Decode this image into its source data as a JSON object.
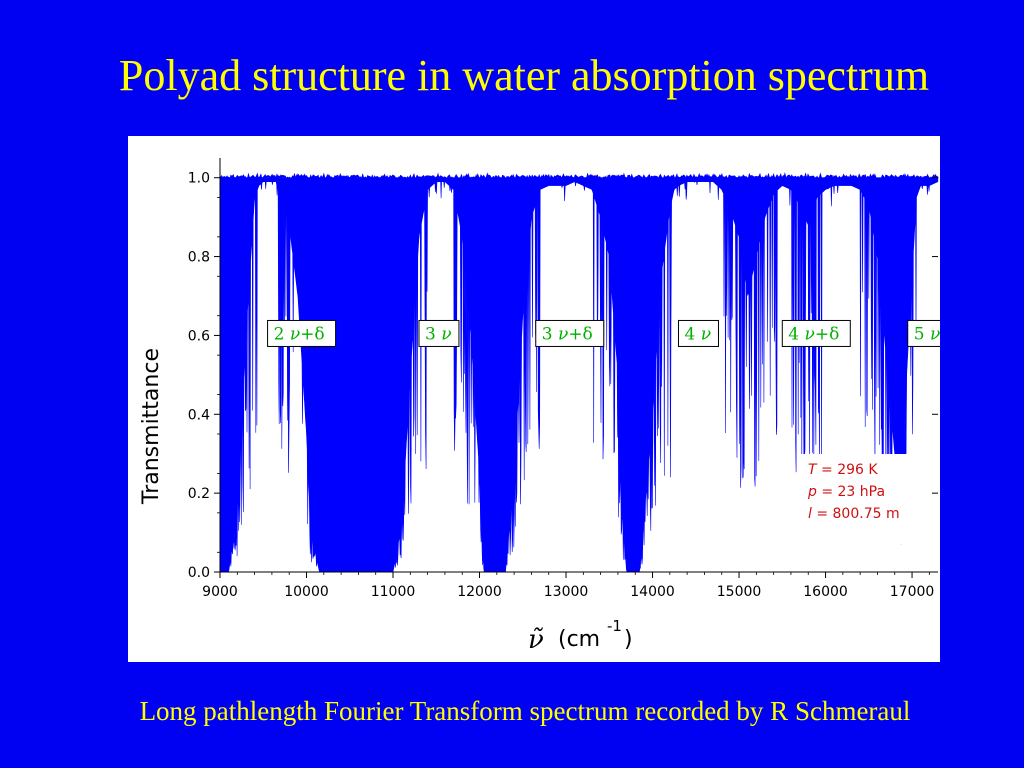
{
  "slide": {
    "title": "Polyad structure in water absorption spectrum",
    "caption": "Long pathlength Fourier Transform spectrum recorded by R Schmeraul"
  },
  "colors": {
    "background": "#0000f2",
    "title_text": "#ffff00",
    "absorption_fill": "#0000ff",
    "band_label_text": "#00b000",
    "conditions_text": "#d01010"
  },
  "chart_data": {
    "type": "area",
    "ylabel": "Transmittance",
    "xlabel_symbol": "ν̃",
    "xlabel_unit": "(cm",
    "xlabel_exponent": "-1",
    "xlabel_close": ")",
    "xlim": [
      9000,
      17300
    ],
    "ylim": [
      0,
      1.05
    ],
    "x_ticks": [
      9000,
      10000,
      11000,
      12000,
      13000,
      14000,
      15000,
      16000,
      17000
    ],
    "x_tick_labels": [
      "9000",
      "10000",
      "11000",
      "12000",
      "13000",
      "14000",
      "15000",
      "16000",
      "17000"
    ],
    "y_ticks": [
      0.0,
      0.2,
      0.4,
      0.6,
      0.8,
      1.0
    ],
    "y_tick_labels": [
      "0.0",
      "0.2",
      "0.4",
      "0.6",
      "0.8",
      "1.0"
    ],
    "transmittance_envelope": {
      "x": [
        9000,
        9100,
        9200,
        9300,
        9400,
        9450,
        9500,
        9550,
        9650,
        9700,
        9800,
        9900,
        10000,
        10050,
        10150,
        10900,
        11000,
        11100,
        11200,
        11300,
        11400,
        11500,
        11600,
        11700,
        11800,
        11900,
        12000,
        12050,
        12300,
        12400,
        12500,
        12600,
        12700,
        12800,
        12900,
        13000,
        13100,
        13300,
        13400,
        13500,
        13600,
        13650,
        13700,
        13750,
        13850,
        14000,
        14100,
        14200,
        14250,
        14300,
        14400,
        14500,
        14600,
        14700,
        14800,
        14900,
        15000,
        15100,
        15200,
        15300,
        15400,
        15500,
        15600,
        15700,
        15800,
        15850,
        15900,
        16000,
        16100,
        16200,
        16300,
        16400,
        16500,
        16600,
        16700,
        16800,
        16850,
        16900,
        17000,
        17050,
        17100,
        17200,
        17300
      ],
      "y": [
        0.0,
        0.0,
        0.15,
        0.6,
        0.95,
        0.98,
        0.99,
        0.99,
        0.99,
        0.95,
        0.88,
        0.7,
        0.35,
        0.1,
        0.0,
        0.0,
        0.0,
        0.12,
        0.5,
        0.85,
        0.97,
        0.99,
        0.99,
        0.97,
        0.85,
        0.6,
        0.25,
        0.0,
        0.0,
        0.25,
        0.65,
        0.9,
        0.97,
        0.98,
        0.98,
        0.98,
        0.99,
        0.97,
        0.9,
        0.8,
        0.5,
        0.15,
        0.0,
        0.0,
        0.0,
        0.4,
        0.75,
        0.92,
        0.97,
        0.98,
        0.99,
        0.99,
        0.99,
        0.99,
        0.97,
        0.92,
        0.85,
        0.7,
        0.8,
        0.9,
        0.96,
        0.98,
        0.97,
        0.93,
        0.88,
        0.9,
        0.95,
        0.97,
        0.98,
        0.98,
        0.98,
        0.97,
        0.93,
        0.8,
        0.55,
        0.3,
        0.22,
        0.35,
        0.75,
        0.95,
        0.98,
        0.98,
        0.99
      ]
    },
    "band_labels": [
      {
        "number": "2",
        "suffix": "+δ",
        "x": 9550,
        "y": 0.605
      },
      {
        "number": "3",
        "suffix": "",
        "x": 11300,
        "y": 0.605
      },
      {
        "number": "3",
        "suffix": "+δ",
        "x": 12650,
        "y": 0.605
      },
      {
        "number": "4",
        "suffix": "",
        "x": 14300,
        "y": 0.605
      },
      {
        "number": "4",
        "suffix": "+δ",
        "x": 15500,
        "y": 0.605
      },
      {
        "number": "5",
        "suffix": "",
        "x": 16950,
        "y": 0.605
      }
    ],
    "band_symbol": "ν",
    "conditions": [
      {
        "symbol": "T",
        "value": "= 296 K"
      },
      {
        "symbol": "p",
        "value": "= 23 hPa"
      },
      {
        "symbol": "l",
        "value": "= 800.75 m"
      }
    ]
  }
}
